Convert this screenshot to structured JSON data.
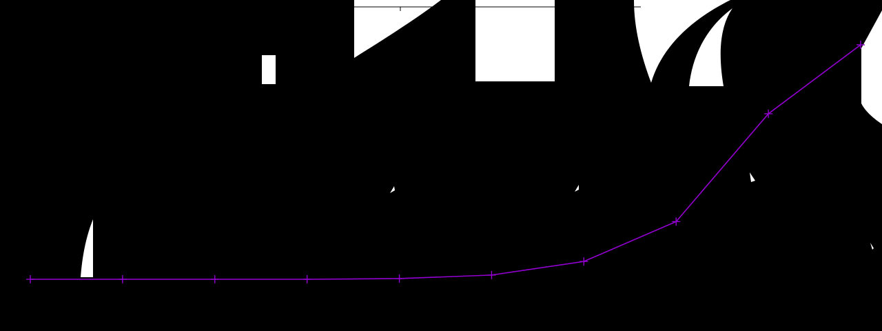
{
  "colors": {
    "background": "#000000",
    "artifact": "#ffffff",
    "series_line": "#9400d3",
    "grid": "#000000"
  },
  "chart_data": {
    "type": "line",
    "title": "",
    "xlabel": "",
    "ylabel": "",
    "grid": true,
    "legend": "none",
    "x": [
      1,
      2,
      3,
      4,
      5,
      6,
      7,
      8,
      9,
      10
    ],
    "xlim": [
      1,
      10
    ],
    "ylim": [
      0,
      100
    ],
    "series": [
      {
        "color": "#9400d3",
        "marker": "plus",
        "values": [
          0,
          0,
          0,
          0,
          0.3,
          1.8,
          7.6,
          24.6,
          70.6,
          100
        ]
      }
    ]
  }
}
